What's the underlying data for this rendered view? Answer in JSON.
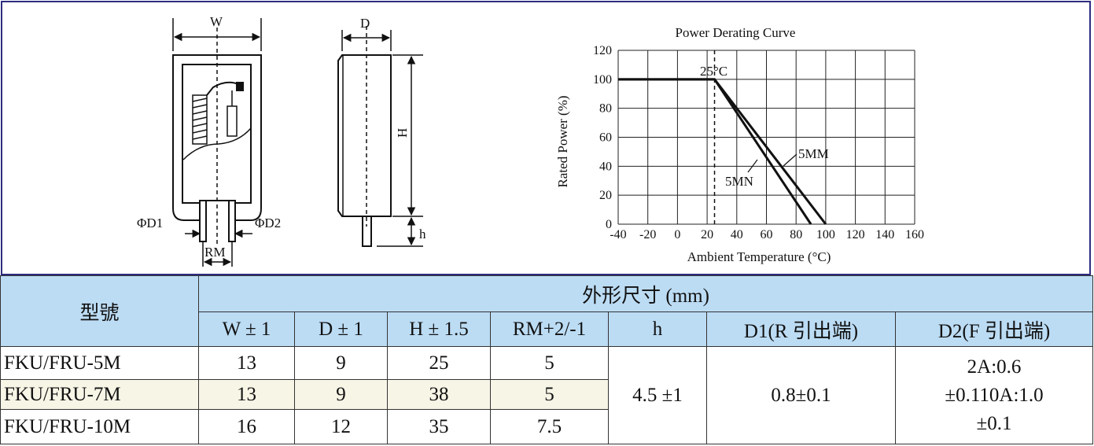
{
  "drawing": {
    "front_labels": {
      "width": "W",
      "d1": "ΦD1",
      "d2": "ΦD2",
      "pitch": "RM"
    },
    "side_labels": {
      "depth": "D",
      "height": "H",
      "lead": "h"
    }
  },
  "chart_data": {
    "type": "line",
    "title": "Power Derating Curve",
    "xlabel": "Ambient Temperature (°C)",
    "ylabel": "Rated Power (%)",
    "xlim": [
      -40,
      160
    ],
    "ylim": [
      0,
      120
    ],
    "xticks": [
      -40,
      -20,
      0,
      20,
      40,
      60,
      80,
      100,
      120,
      140,
      160
    ],
    "yticks": [
      0,
      20,
      40,
      60,
      80,
      100,
      120
    ],
    "grid": true,
    "reference_line": {
      "x": 25,
      "label": "25°C"
    },
    "series": [
      {
        "name": "5MN",
        "x": [
          -40,
          25,
          90
        ],
        "y": [
          100,
          100,
          0
        ]
      },
      {
        "name": "5MM",
        "x": [
          -40,
          25,
          100
        ],
        "y": [
          100,
          100,
          0
        ]
      }
    ]
  },
  "table": {
    "model_header": "型號",
    "group_header": "外形尺寸 (mm)",
    "columns": [
      "W ± 1",
      "D ± 1",
      "H ± 1.5",
      "RM+2/-1",
      "h",
      "D1(R 引出端)",
      "D2(F 引出端)"
    ],
    "rows": [
      {
        "model": "FKU/FRU-5M",
        "w": "13",
        "d": "9",
        "h": "25",
        "rm": "5"
      },
      {
        "model": "FKU/FRU-7M",
        "w": "13",
        "d": "9",
        "h": "38",
        "rm": "5"
      },
      {
        "model": "FKU/FRU-10M",
        "w": "16",
        "d": "12",
        "h": "35",
        "rm": "7.5"
      }
    ],
    "shared_h": "4.5 ±1",
    "shared_d1": "0.8±0.1",
    "shared_d2": [
      "2A:0.6",
      "±0.110A:1.0",
      "±0.1"
    ]
  }
}
